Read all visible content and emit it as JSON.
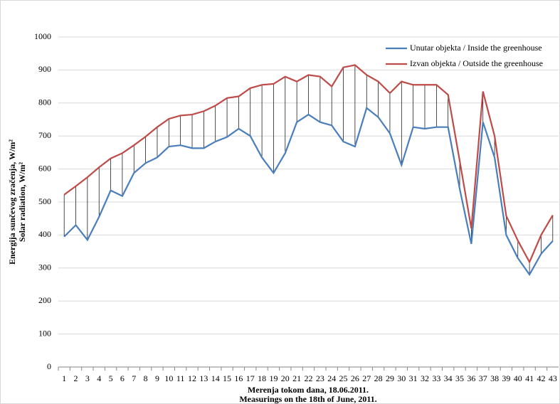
{
  "chart_data": {
    "type": "line",
    "categories": [
      1,
      2,
      3,
      4,
      5,
      6,
      7,
      8,
      9,
      10,
      11,
      12,
      13,
      14,
      15,
      16,
      17,
      18,
      19,
      20,
      21,
      22,
      23,
      24,
      25,
      26,
      27,
      28,
      29,
      30,
      31,
      32,
      33,
      34,
      35,
      36,
      37,
      38,
      39,
      40,
      41,
      42,
      43
    ],
    "series": [
      {
        "name": "Unutar objekta / Inside the greenhouse",
        "color": "#4a7ebb",
        "values": [
          395,
          430,
          385,
          455,
          535,
          518,
          588,
          618,
          635,
          668,
          672,
          663,
          663,
          683,
          697,
          722,
          700,
          635,
          588,
          648,
          742,
          765,
          742,
          732,
          683,
          668,
          785,
          757,
          708,
          612,
          727,
          722,
          727,
          727,
          540,
          373,
          742,
          635,
          400,
          330,
          280,
          343,
          382
        ]
      },
      {
        "name": "Izvan objekta / Outside the greenhouse",
        "color": "#be4b48",
        "values": [
          522,
          548,
          575,
          605,
          632,
          648,
          672,
          698,
          727,
          752,
          762,
          765,
          775,
          792,
          815,
          820,
          845,
          855,
          858,
          880,
          865,
          885,
          880,
          850,
          908,
          915,
          885,
          865,
          830,
          865,
          855,
          855,
          855,
          825,
          625,
          420,
          835,
          700,
          458,
          383,
          318,
          400,
          460
        ]
      }
    ],
    "ylim": [
      0,
      1000
    ],
    "yticks": [
      0,
      100,
      200,
      300,
      400,
      500,
      600,
      700,
      800,
      900,
      1000
    ],
    "grid": true,
    "xlabel": [
      "Merenja tokom dana, 18.06.2011.",
      "Measurings on the 18th of June, 2011."
    ],
    "ylabel": [
      "Energija sunčevog zračenja, W/m²",
      "Solar radiation, W/m²"
    ],
    "legend": "top-right"
  }
}
